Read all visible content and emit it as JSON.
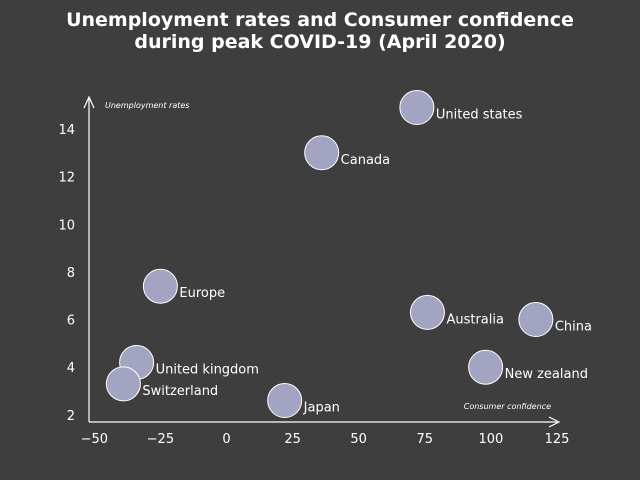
{
  "chart_data": {
    "type": "scatter",
    "title_lines": [
      "Unemployment rates and Consumer confidence",
      "during peak COVID-19 (April 2020)"
    ],
    "xlabel": "Consumer confidence",
    "ylabel": "Unemployment rates",
    "xlim": [
      -52,
      125
    ],
    "ylim": [
      1.7,
      15.3
    ],
    "xticks": [
      -50,
      -25,
      0,
      25,
      50,
      75,
      100,
      125
    ],
    "xtick_labels": [
      "−50",
      "−25",
      "0",
      "25",
      "50",
      "75",
      "100",
      "125"
    ],
    "yticks": [
      2,
      4,
      6,
      8,
      10,
      12,
      14
    ],
    "ytick_labels": [
      "2",
      "4",
      "6",
      "8",
      "10",
      "12",
      "14"
    ],
    "grid": false,
    "points": [
      {
        "label": "United states",
        "x": 72,
        "y": 14.9
      },
      {
        "label": "Canada",
        "x": 36,
        "y": 13.0
      },
      {
        "label": "Europe",
        "x": -25,
        "y": 7.4
      },
      {
        "label": "Australia",
        "x": 76,
        "y": 6.3
      },
      {
        "label": "China",
        "x": 117,
        "y": 6.0
      },
      {
        "label": "United kingdom",
        "x": -34,
        "y": 4.2
      },
      {
        "label": "New zealand",
        "x": 98,
        "y": 4.0
      },
      {
        "label": "Switzerland",
        "x": -39,
        "y": 3.3
      },
      {
        "label": "Japan",
        "x": 22,
        "y": 2.6
      }
    ]
  },
  "colors": {
    "background": "#3e3e3e",
    "marker": "#a3a3c2",
    "marker_edge": "#ffffff",
    "text": "#ffffff"
  }
}
